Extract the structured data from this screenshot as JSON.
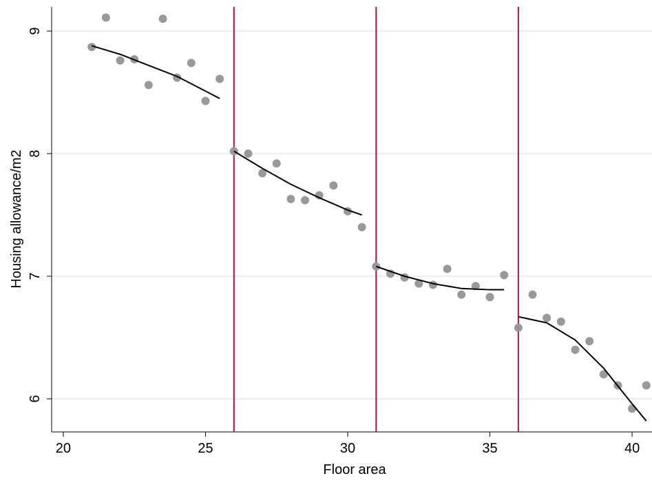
{
  "chart_data": {
    "type": "scatter",
    "xlabel": "Floor area",
    "ylabel": "Housing allowance/m2",
    "x": [
      21,
      21.5,
      22,
      22.5,
      23,
      23.5,
      24,
      24.5,
      25,
      25.5,
      26,
      26.5,
      27,
      27.5,
      28,
      28.5,
      29,
      29.5,
      30,
      30.5,
      31,
      31.5,
      32,
      32.5,
      33,
      33.5,
      34,
      34.5,
      35,
      35.5,
      36,
      36.5,
      37,
      37.5,
      38,
      38.5,
      39,
      39.5,
      40,
      40.5
    ],
    "values": [
      8.87,
      9.11,
      8.76,
      8.77,
      8.56,
      9.1,
      8.62,
      8.74,
      8.43,
      8.61,
      8.02,
      8.0,
      7.84,
      7.92,
      7.63,
      7.62,
      7.66,
      7.74,
      7.53,
      7.4,
      7.08,
      7.02,
      6.99,
      6.94,
      6.93,
      7.06,
      6.85,
      6.92,
      6.83,
      7.01,
      6.58,
      6.85,
      6.66,
      6.63,
      6.4,
      6.47,
      6.2,
      6.11,
      5.92,
      6.11
    ],
    "color": "#999999",
    "fit": {
      "color": "#000000",
      "segments": [
        {
          "x": [
            21,
            22,
            23,
            24,
            25,
            25.5
          ],
          "values": [
            8.88,
            8.81,
            8.72,
            8.63,
            8.51,
            8.45
          ]
        },
        {
          "x": [
            26,
            27,
            28,
            29,
            30,
            30.5
          ],
          "values": [
            8.02,
            7.88,
            7.75,
            7.64,
            7.54,
            7.5
          ]
        },
        {
          "x": [
            31,
            32,
            33,
            34,
            35,
            35.5
          ],
          "values": [
            7.08,
            7.0,
            6.94,
            6.9,
            6.89,
            6.89
          ]
        },
        {
          "x": [
            36,
            37,
            38,
            39,
            40,
            40.5
          ],
          "values": [
            6.67,
            6.62,
            6.48,
            6.25,
            5.96,
            5.82
          ]
        }
      ]
    },
    "vlines": {
      "color": "#b0103c",
      "values": [
        26,
        31,
        36
      ]
    },
    "xlim": [
      19.59,
      40.7
    ],
    "ylim": [
      5.73,
      9.197
    ],
    "xticks": [
      20,
      25,
      30,
      35,
      40
    ],
    "yticks": [
      6,
      7,
      8,
      9
    ],
    "grid": true
  }
}
